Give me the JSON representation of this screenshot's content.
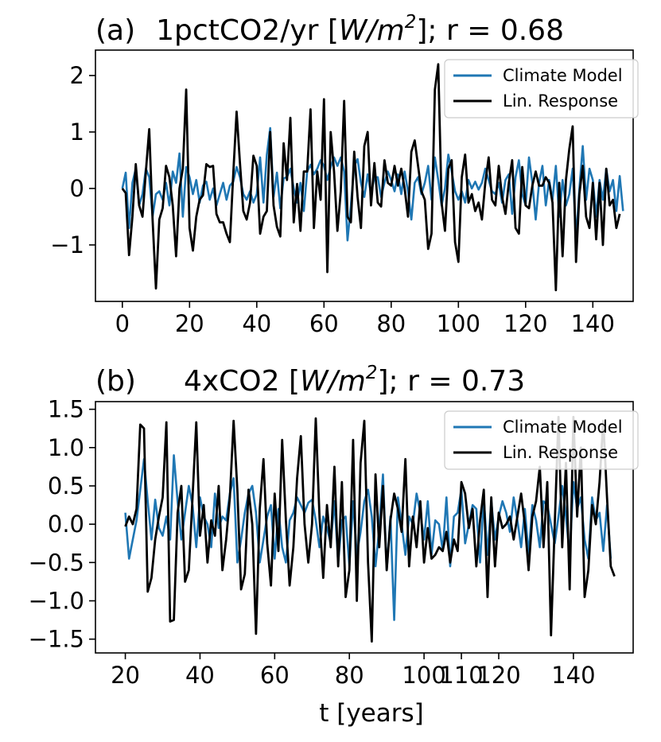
{
  "colors": {
    "model": "#1f77b4",
    "response": "#000000"
  },
  "chart_data": [
    {
      "type": "line",
      "panel": "(a)",
      "title_prefix": "1pctCO2/yr [",
      "title_unit_base": "W/m",
      "title_unit_exp": "2",
      "title_suffix": "]; r = 0.68",
      "xlabel": "",
      "ylabel": "",
      "xlim": [
        -8,
        152
      ],
      "ylim": [
        -2.0,
        2.45
      ],
      "xticks": [
        0,
        20,
        40,
        60,
        80,
        100,
        120,
        140
      ],
      "xtick_labels": [
        "0",
        "20",
        "40",
        "60",
        "80",
        "100",
        "120",
        "140"
      ],
      "yticks": [
        -1,
        0,
        1,
        2
      ],
      "ytick_labels": [
        "−1",
        "0",
        "1",
        "2"
      ],
      "legend": {
        "placement": "top-right",
        "entries": [
          "Climate Model",
          "Lin. Response"
        ]
      },
      "x_start": 0,
      "series": [
        {
          "name": "Climate Model",
          "values": [
            0.0,
            0.28,
            -0.7,
            0.1,
            0.35,
            -0.3,
            -0.1,
            0.35,
            0.2,
            -0.5,
            -0.1,
            -0.05,
            -0.2,
            0.1,
            -0.3,
            0.3,
            0.1,
            0.62,
            -0.5,
            0.38,
            0.2,
            -0.1,
            0.15,
            -0.25,
            0.05,
            0.12,
            -0.2,
            0.0,
            -0.3,
            -0.1,
            0.1,
            -0.2,
            0.05,
            0.12,
            0.38,
            0.2,
            -0.1,
            -0.2,
            -0.05,
            -0.25,
            -0.1,
            0.55,
            -0.25,
            0.6,
            1.07,
            -0.15,
            0.28,
            -0.35,
            0.18,
            0.2,
            0.35,
            0.0,
            -0.25,
            0.1,
            -0.4,
            0.3,
            0.42,
            0.25,
            0.35,
            0.5,
            0.4,
            0.15,
            0.38,
            0.55,
            0.4,
            0.55,
            0.3,
            -0.92,
            -0.3,
            0.4,
            0.52,
            0.1,
            -0.15,
            0.25,
            -0.1,
            0.2,
            0.2,
            -0.15,
            0.1,
            0.3,
            0.15,
            -0.05,
            0.25,
            -0.1,
            0.3,
            -0.05,
            -0.55,
            0.1,
            0.2,
            -0.1,
            0.1,
            0.4,
            -0.2,
            0.55,
            0.15,
            -0.3,
            0.0,
            0.6,
            0.3,
            -0.05,
            -0.2,
            -0.05,
            -0.25,
            0.15,
            0.0,
            0.12,
            -0.02,
            0.1,
            0.35,
            0.15,
            -0.05,
            -0.1,
            0.1,
            -0.25,
            0.15,
            0.25,
            -0.45,
            0.2,
            0.5,
            -0.1,
            -0.3,
            0.55,
            0.1,
            -0.55,
            0.1,
            0.4,
            -0.3,
            0.15,
            -0.2,
            0.4,
            -0.5,
            0.15,
            -0.3,
            -0.1,
            0.35,
            -0.9,
            0.0,
            0.75,
            -0.2,
            0.35,
            0.15,
            -0.5,
            0.15,
            -0.2,
            0.35,
            -0.05,
            0.15,
            -0.4,
            0.22,
            -0.4
          ]
        },
        {
          "name": "Lin. Response",
          "values": [
            0.0,
            -0.08,
            -1.18,
            -0.5,
            0.43,
            -0.3,
            -0.5,
            0.3,
            1.05,
            -0.55,
            -1.77,
            -0.55,
            -0.35,
            0.4,
            0.2,
            -0.3,
            -1.2,
            0.0,
            0.35,
            1.75,
            -0.7,
            -1.1,
            -0.5,
            -0.2,
            -0.12,
            0.43,
            0.38,
            0.4,
            -0.45,
            -0.6,
            -0.6,
            -0.8,
            -0.95,
            0.25,
            1.36,
            0.45,
            -0.4,
            -0.55,
            -0.25,
            0.58,
            0.4,
            -0.8,
            -0.5,
            -0.4,
            1.0,
            -0.3,
            -0.68,
            -0.85,
            0.8,
            0.15,
            1.25,
            -0.6,
            0.08,
            -0.75,
            0.3,
            0.3,
            1.4,
            -0.7,
            0.3,
            -0.2,
            1.58,
            -1.48,
            1.0,
            0.3,
            -0.75,
            -0.05,
            1.55,
            -0.5,
            -0.6,
            0.65,
            -0.15,
            -0.7,
            0.75,
            1.0,
            -0.3,
            0.45,
            -0.25,
            -0.32,
            0.5,
            0.1,
            0.05,
            0.4,
            0.05,
            0.35,
            0.0,
            -0.5,
            0.65,
            0.85,
            0.4,
            -0.05,
            -0.2,
            -1.07,
            -0.8,
            1.75,
            2.2,
            -0.25,
            -0.75,
            0.35,
            0.5,
            -0.95,
            -1.3,
            0.2,
            0.6,
            -0.25,
            -0.1,
            -0.4,
            -0.25,
            -0.55,
            0.1,
            0.55,
            -0.2,
            -0.3,
            0.4,
            -0.15,
            -0.45,
            0.1,
            0.5,
            -0.7,
            -0.8,
            0.38,
            -0.3,
            -0.35,
            0.05,
            0.3,
            0.05,
            0.05,
            0.2,
            0.1,
            -0.25,
            -1.8,
            0.1,
            -1.2,
            0.15,
            0.7,
            1.1,
            -1.3,
            -0.1,
            0.4,
            -0.5,
            -0.7,
            0.1,
            -0.9,
            0.1,
            -1.0,
            0.35,
            -0.3,
            -0.2,
            -0.7,
            -0.45
          ]
        }
      ]
    },
    {
      "type": "line",
      "panel": "(b)",
      "title_prefix": "4xCO2 [",
      "title_unit_base": "W/m",
      "title_unit_exp": "2",
      "title_suffix": "]; r = 0.73",
      "xlabel": "t [years]",
      "ylabel": "",
      "xlim": [
        12,
        156
      ],
      "ylim": [
        -1.68,
        1.6
      ],
      "xticks": [
        20,
        40,
        60,
        80,
        100,
        110,
        120,
        140
      ],
      "xtick_labels": [
        "20",
        "40",
        "60",
        "80",
        "100",
        "110",
        "120",
        "140"
      ],
      "yticks": [
        -1.5,
        -1.0,
        -0.5,
        0.0,
        0.5,
        1.0,
        1.5
      ],
      "ytick_labels": [
        "−1.5",
        "−1.0",
        "−0.5",
        "0.0",
        "0.5",
        "1.0",
        "1.5"
      ],
      "legend": {
        "placement": "top-right",
        "entries": [
          "Climate Model",
          "Lin. Response"
        ]
      },
      "x_start": 20,
      "series": [
        {
          "name": "Climate Model",
          "values": [
            0.15,
            -0.45,
            -0.2,
            0.05,
            0.45,
            0.85,
            0.3,
            -0.2,
            0.32,
            -0.05,
            -0.15,
            0.1,
            -0.2,
            0.9,
            0.3,
            -0.2,
            0.15,
            0.5,
            0.25,
            -0.3,
            0.35,
            0.1,
            0.0,
            -0.3,
            0.4,
            -0.05,
            0.1,
            0.05,
            0.4,
            0.6,
            -0.5,
            -0.2,
            0.15,
            0.4,
            0.5,
            0.15,
            -0.5,
            -0.2,
            0.1,
            0.25,
            -0.45,
            0.2,
            -0.3,
            -0.5,
            0.05,
            0.15,
            0.35,
            0.25,
            0.15,
            0.28,
            0.32,
            0.05,
            -0.3,
            0.1,
            -0.05,
            -0.25,
            0.3,
            -0.5,
            0.05,
            0.1,
            -0.55,
            0.3,
            -0.4,
            -0.1,
            0.3,
            0.45,
            0.1,
            -0.55,
            -0.05,
            0.65,
            -0.6,
            0.1,
            -1.25,
            0.35,
            0.0,
            -0.4,
            0.1,
            0.0,
            0.4,
            0.15,
            -0.2,
            0.3,
            -0.4,
            0.05,
            0.0,
            -0.35,
            0.35,
            -0.55,
            0.1,
            0.15,
            0.45,
            -0.25,
            0.0,
            0.25,
            0.2,
            -0.5,
            0.35,
            -0.4,
            0.3,
            -0.2,
            0.1,
            0.3,
            0.15,
            -0.1,
            0.35,
            0.05,
            -0.3,
            0.2,
            -0.4,
            0.25,
            0.05,
            -0.3,
            0.3,
            0.25,
            0.0,
            -0.25,
            0.1,
            0.5,
            0.1,
            -0.4,
            0.55,
            0.2,
            0.35,
            -0.2,
            -0.45,
            0.35,
            0.05,
            0.15,
            -0.35,
            0.25,
            -0.45
          ]
        },
        {
          "name": "Lin. Response",
          "values": [
            -0.03,
            0.1,
            0.0,
            0.2,
            1.3,
            1.25,
            -0.88,
            -0.7,
            -0.2,
            0.1,
            0.35,
            1.33,
            -1.27,
            -1.25,
            0.15,
            0.5,
            -0.75,
            -0.6,
            0.35,
            1.33,
            -0.15,
            0.25,
            -0.5,
            0.05,
            -0.15,
            0.5,
            -0.6,
            -0.2,
            0.35,
            1.35,
            0.45,
            -0.85,
            -0.65,
            0.45,
            0.0,
            -1.43,
            0.2,
            0.85,
            -0.25,
            -0.8,
            0.4,
            -0.35,
            1.1,
            0.05,
            -0.8,
            -0.3,
            0.6,
            1.15,
            0.0,
            -0.5,
            0.0,
            1.38,
            0.1,
            -0.7,
            0.25,
            -0.3,
            0.75,
            -0.55,
            0.55,
            -0.95,
            -0.6,
            1.1,
            -1.0,
            0.8,
            1.35,
            -0.5,
            -1.53,
            0.65,
            -0.3,
            0.5,
            -0.6,
            0.05,
            0.4,
            0.2,
            -0.1,
            0.85,
            -0.55,
            0.1,
            -0.3,
            0.3,
            -0.5,
            -0.05,
            -0.45,
            -0.4,
            -0.3,
            -0.35,
            -0.1,
            -0.5,
            -0.2,
            -0.35,
            0.55,
            0.4,
            -0.05,
            0.2,
            -0.55,
            0.05,
            0.45,
            -0.95,
            0.35,
            -0.55,
            0.15,
            -0.05,
            0.0,
            0.1,
            -0.2,
            0.1,
            0.4,
            0.0,
            -0.6,
            0.1,
            0.3,
            0.75,
            -0.3,
            0.55,
            -1.45,
            0.0,
            1.4,
            -0.3,
            0.8,
            -0.85,
            1.4,
            0.1,
            1.0,
            -0.95,
            -0.6,
            0.25,
            0.0,
            0.55,
            1.35,
            0.35,
            -0.55,
            -0.68
          ]
        }
      ]
    }
  ]
}
